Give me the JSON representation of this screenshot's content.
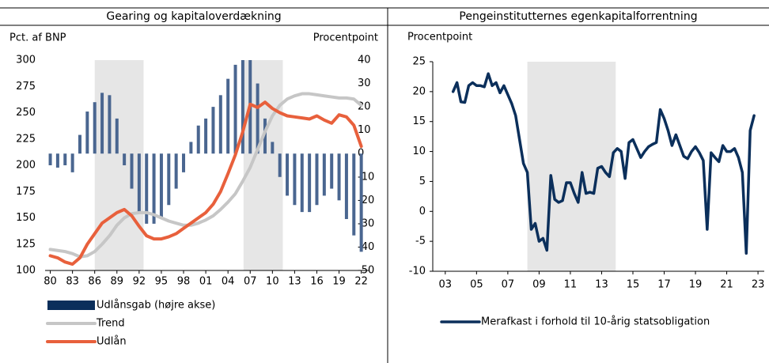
{
  "chart_data": [
    {
      "type": "combo",
      "title": "Gearing og kapitaloverdækning",
      "ylabel": "Pct. af BNP",
      "y2label": "Procentpoint",
      "x": [
        1980,
        1981,
        1982,
        1983,
        1984,
        1985,
        1986,
        1987,
        1988,
        1989,
        1990,
        1991,
        1992,
        1993,
        1994,
        1995,
        1996,
        1997,
        1998,
        1999,
        2000,
        2001,
        2002,
        2003,
        2004,
        2005,
        2006,
        2007,
        2008,
        2009,
        2010,
        2011,
        2012,
        2013,
        2014,
        2015,
        2016,
        2017,
        2018,
        2019,
        2020,
        2021,
        2022
      ],
      "xlim": [
        1979.3,
        2023
      ],
      "xticks": [
        {
          "value": 1980,
          "label": "80"
        },
        {
          "value": 1983,
          "label": "83"
        },
        {
          "value": 1986,
          "label": "86"
        },
        {
          "value": 1989,
          "label": "89"
        },
        {
          "value": 1992,
          "label": "92"
        },
        {
          "value": 1995,
          "label": "95"
        },
        {
          "value": 1998,
          "label": "98"
        },
        {
          "value": 2001,
          "label": "01"
        },
        {
          "value": 2004,
          "label": "04"
        },
        {
          "value": 2007,
          "label": "07"
        },
        {
          "value": 2010,
          "label": "10"
        },
        {
          "value": 2013,
          "label": "13"
        },
        {
          "value": 2016,
          "label": "16"
        },
        {
          "value": 2019,
          "label": "19"
        },
        {
          "value": 2022,
          "label": "22"
        }
      ],
      "ylim": [
        100,
        300
      ],
      "yticks": [
        100,
        125,
        150,
        175,
        200,
        225,
        250,
        275,
        300
      ],
      "y2lim": [
        -50,
        40
      ],
      "y2ticks": [
        -50,
        -40,
        -30,
        -20,
        -10,
        0,
        10,
        20,
        30,
        40
      ],
      "shaded_periods": [
        [
          1986,
          1992.6
        ],
        [
          2006.1,
          2011.4
        ]
      ],
      "shade_color": "#e6e6e6",
      "legend": "bottom",
      "series": [
        {
          "name": "Udlånsgab (højre akse)",
          "type": "bar",
          "axis": "y2",
          "color": "#4a6690",
          "legend_color": "#0b2f5b",
          "values": [
            -5,
            -6,
            -5,
            -8,
            8,
            18,
            22,
            26,
            25,
            15,
            -5,
            -15,
            -25,
            -30,
            -30,
            -28,
            -22,
            -15,
            -8,
            5,
            12,
            15,
            20,
            25,
            32,
            38,
            40,
            40,
            30,
            15,
            5,
            -10,
            -18,
            -22,
            -25,
            -25,
            -22,
            -18,
            -15,
            -20,
            -28,
            -35,
            -42
          ]
        },
        {
          "name": "Trend",
          "type": "line",
          "color": "#c6c6c6",
          "values": [
            120,
            119,
            118,
            116,
            113,
            114,
            118,
            125,
            133,
            143,
            150,
            154,
            155,
            155,
            153,
            150,
            147,
            145,
            143,
            143,
            145,
            148,
            152,
            158,
            165,
            173,
            185,
            198,
            215,
            232,
            247,
            257,
            263,
            266,
            268,
            268,
            267,
            266,
            265,
            264,
            264,
            263,
            257
          ]
        },
        {
          "name": "Udlån",
          "type": "line",
          "color": "#e8603c",
          "values": [
            114,
            112,
            108,
            106,
            112,
            125,
            135,
            145,
            150,
            155,
            158,
            152,
            142,
            133,
            130,
            130,
            132,
            135,
            140,
            145,
            150,
            155,
            163,
            175,
            192,
            210,
            232,
            258,
            255,
            260,
            254,
            250,
            247,
            246,
            245,
            244,
            247,
            243,
            240,
            248,
            246,
            238,
            218
          ]
        }
      ]
    },
    {
      "type": "line",
      "title": "Pengeinstitutternes egenkapitalforrentning",
      "ylabel": "Procentpoint",
      "xlim": [
        2002.2,
        2023.4
      ],
      "xticks": [
        {
          "value": 2003,
          "label": "03"
        },
        {
          "value": 2005,
          "label": "05"
        },
        {
          "value": 2007,
          "label": "07"
        },
        {
          "value": 2009,
          "label": "09"
        },
        {
          "value": 2011,
          "label": "11"
        },
        {
          "value": 2013,
          "label": "13"
        },
        {
          "value": 2015,
          "label": "15"
        },
        {
          "value": 2017,
          "label": "17"
        },
        {
          "value": 2019,
          "label": "19"
        },
        {
          "value": 2021,
          "label": "21"
        },
        {
          "value": 2023,
          "label": "23"
        }
      ],
      "ylim": [
        -10,
        25
      ],
      "yticks": [
        -10,
        -5,
        0,
        5,
        10,
        15,
        20,
        25
      ],
      "shaded_periods": [
        [
          2008.25,
          2013.9
        ]
      ],
      "shade_color": "#e6e6e6",
      "legend": "bottom",
      "series": [
        {
          "name": "Merafkast i forhold til 10-årig statsobligation",
          "color": "#0b2f5b",
          "x": [
            2003.5,
            2003.75,
            2004,
            2004.25,
            2004.5,
            2004.75,
            2005,
            2005.25,
            2005.5,
            2005.75,
            2006,
            2006.25,
            2006.5,
            2006.75,
            2007,
            2007.25,
            2007.5,
            2007.75,
            2008,
            2008.25,
            2008.5,
            2008.75,
            2009,
            2009.25,
            2009.5,
            2009.75,
            2010,
            2010.25,
            2010.5,
            2010.75,
            2011,
            2011.25,
            2011.5,
            2011.75,
            2012,
            2012.25,
            2012.5,
            2012.75,
            2013,
            2013.25,
            2013.5,
            2013.75,
            2014,
            2014.25,
            2014.5,
            2014.75,
            2015,
            2015.25,
            2015.5,
            2015.75,
            2016,
            2016.25,
            2016.5,
            2016.75,
            2017,
            2017.25,
            2017.5,
            2017.75,
            2018,
            2018.25,
            2018.5,
            2018.75,
            2019,
            2019.25,
            2019.5,
            2019.75,
            2020,
            2020.25,
            2020.5,
            2020.75,
            2021,
            2021.25,
            2021.5,
            2021.75,
            2022,
            2022.25,
            2022.5,
            2022.75
          ],
          "values": [
            20,
            21.5,
            18.3,
            18.2,
            21,
            21.5,
            21,
            21,
            20.8,
            23,
            21,
            21.5,
            19.8,
            21,
            19.5,
            18,
            16,
            12,
            8,
            6.5,
            -3,
            -2,
            -5,
            -4.5,
            -6.5,
            6,
            2,
            1.5,
            1.8,
            4.8,
            4.8,
            3,
            1.5,
            6.5,
            3,
            3.2,
            3,
            7.2,
            7.5,
            6.5,
            5.8,
            9.8,
            10.5,
            10,
            5.5,
            11.5,
            12,
            10.5,
            9,
            10,
            10.8,
            11.2,
            11.5,
            17,
            15.5,
            13.5,
            11,
            12.8,
            11,
            9.2,
            8.8,
            10,
            10.8,
            9.8,
            8.5,
            -3,
            9.8,
            9,
            8.3,
            11,
            10,
            10,
            10.5,
            9,
            6.5,
            -7,
            13.5,
            16
          ]
        }
      ]
    }
  ]
}
